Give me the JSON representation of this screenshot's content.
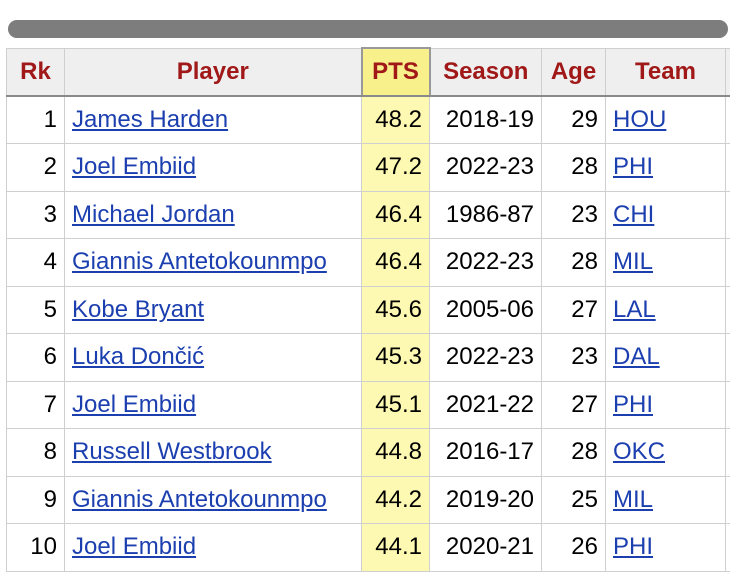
{
  "table": {
    "headers": {
      "rk": "Rk",
      "player": "Player",
      "pts": "PTS",
      "season": "Season",
      "age": "Age",
      "team": "Team"
    },
    "rows": [
      {
        "rk": "1",
        "player": "James Harden",
        "pts": "48.2",
        "season": "2018-19",
        "age": "29",
        "team": "HOU"
      },
      {
        "rk": "2",
        "player": "Joel Embiid",
        "pts": "47.2",
        "season": "2022-23",
        "age": "28",
        "team": "PHI"
      },
      {
        "rk": "3",
        "player": "Michael Jordan",
        "pts": "46.4",
        "season": "1986-87",
        "age": "23",
        "team": "CHI"
      },
      {
        "rk": "4",
        "player": "Giannis Antetokounmpo",
        "pts": "46.4",
        "season": "2022-23",
        "age": "28",
        "team": "MIL"
      },
      {
        "rk": "5",
        "player": "Kobe Bryant",
        "pts": "45.6",
        "season": "2005-06",
        "age": "27",
        "team": "LAL"
      },
      {
        "rk": "6",
        "player": "Luka Dončić",
        "pts": "45.3",
        "season": "2022-23",
        "age": "23",
        "team": "DAL"
      },
      {
        "rk": "7",
        "player": "Joel Embiid",
        "pts": "45.1",
        "season": "2021-22",
        "age": "27",
        "team": "PHI"
      },
      {
        "rk": "8",
        "player": "Russell Westbrook",
        "pts": "44.8",
        "season": "2016-17",
        "age": "28",
        "team": "OKC"
      },
      {
        "rk": "9",
        "player": "Giannis Antetokounmpo",
        "pts": "44.2",
        "season": "2019-20",
        "age": "25",
        "team": "MIL"
      },
      {
        "rk": "10",
        "player": "Joel Embiid",
        "pts": "44.1",
        "season": "2020-21",
        "age": "26",
        "team": "PHI"
      }
    ]
  },
  "colors": {
    "header_text": "#a01818",
    "sorted_header_bg": "#f8f08a",
    "sorted_cell_bg": "#fdf9b3",
    "link": "#1c3fb0"
  }
}
